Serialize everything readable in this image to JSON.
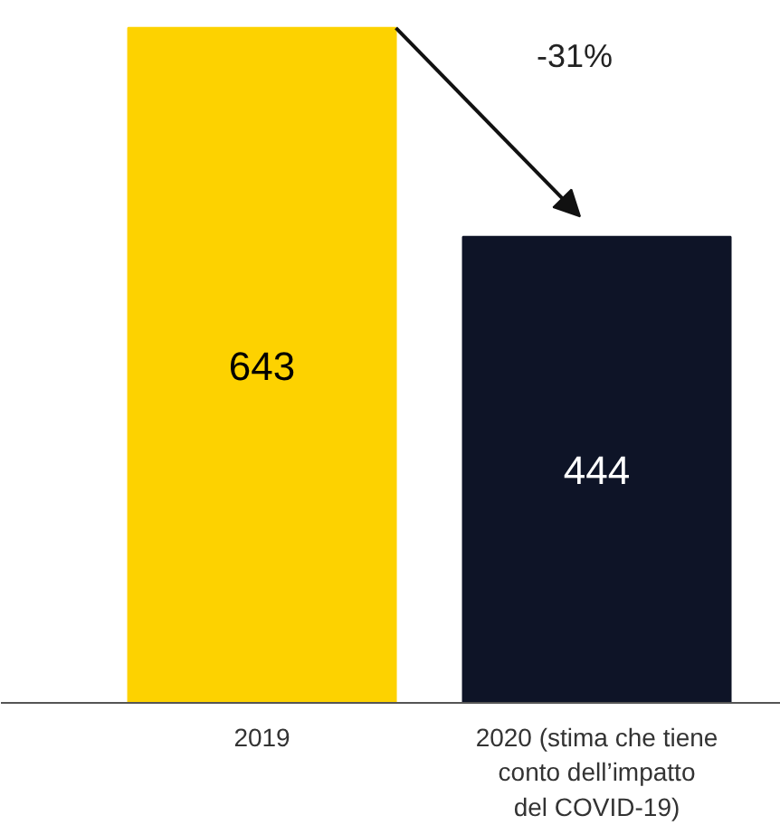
{
  "chart_data": {
    "type": "bar",
    "categories": [
      "2019",
      "2020 (stima che tiene conto dell’impatto del COVID-19)"
    ],
    "values": [
      643,
      444
    ],
    "colors": [
      "#fdd200",
      "#0e1427"
    ],
    "data_labels": true,
    "annotations": [
      "-31%"
    ]
  }
}
